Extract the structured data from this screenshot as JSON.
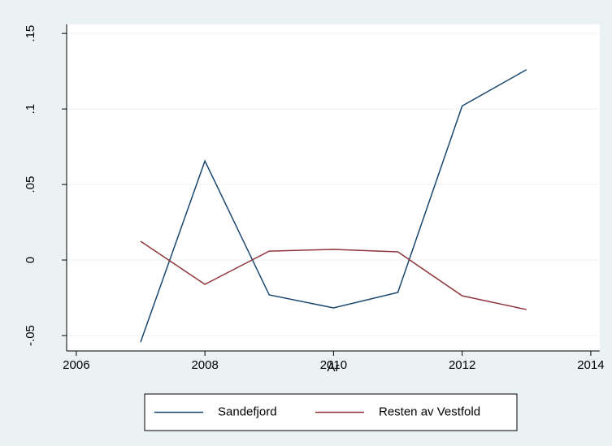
{
  "chart_data": {
    "type": "line",
    "x_label": "År",
    "x": [
      2007,
      2008,
      2009,
      2010,
      2011,
      2012,
      2013
    ],
    "series": [
      {
        "name": "Sandefjord",
        "color": "#1a476f",
        "values": [
          -0.0543,
          0.0656,
          -0.0231,
          -0.0317,
          -0.0215,
          0.102,
          0.126
        ]
      },
      {
        "name": "Resten av Vestfold",
        "color": "#90353b",
        "values": [
          0.0124,
          -0.0161,
          0.0059,
          0.007,
          0.0054,
          -0.0237,
          -0.0328
        ]
      }
    ],
    "xlim": [
      2005.85,
      2014.14
    ],
    "xticks": [
      2006,
      2008,
      2010,
      2012,
      2014
    ],
    "ylim": [
      -0.0602,
      0.156
    ],
    "yticks": [
      {
        "value": -0.05,
        "label": "-.05"
      },
      0,
      {
        "value": 0.05,
        "label": ".05"
      },
      {
        "value": 0.1,
        "label": ".1"
      },
      {
        "value": 0.15,
        "label": ".15"
      }
    ],
    "grid": true,
    "legend": "bottom"
  }
}
